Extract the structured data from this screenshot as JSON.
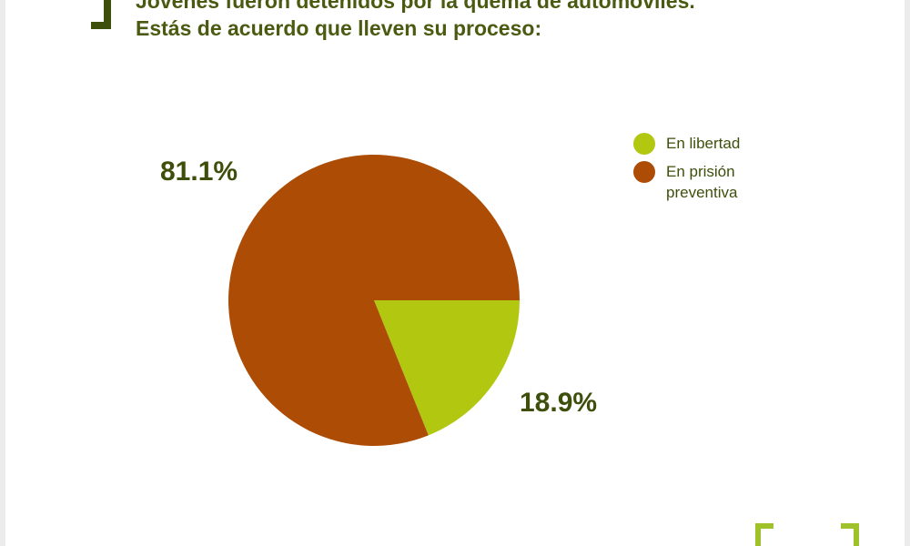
{
  "title": {
    "line1": "Jóvenes fueron detenidos por la quema de automóviles.",
    "line2": "Estás de acuerdo que lleven su proceso:"
  },
  "colors": {
    "libertad": "#b2c70f",
    "prision": "#ad4c05",
    "text": "#3d4f0b"
  },
  "chart_data": {
    "type": "pie",
    "title": "Jóvenes fueron detenidos por la quema de automóviles. Estás de acuerdo que lleven su proceso:",
    "labels": [
      "En libertad",
      "En prisión preventiva"
    ],
    "values": [
      18.9,
      81.1
    ],
    "data_labels": [
      "18.9%",
      "81.1%"
    ],
    "legend": "right"
  }
}
